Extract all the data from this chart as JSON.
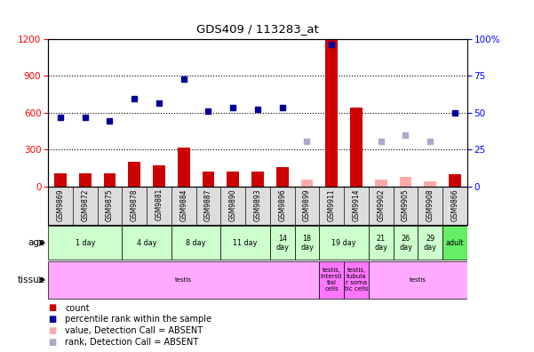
{
  "title": "GDS409 / 113283_at",
  "samples": [
    "GSM9869",
    "GSM9872",
    "GSM9875",
    "GSM9878",
    "GSM9881",
    "GSM9884",
    "GSM9887",
    "GSM9890",
    "GSM9893",
    "GSM9896",
    "GSM9899",
    "GSM9911",
    "GSM9914",
    "GSM9902",
    "GSM9905",
    "GSM9908",
    "GSM9866"
  ],
  "count_values": [
    110,
    110,
    110,
    200,
    175,
    320,
    120,
    120,
    120,
    155,
    null,
    1200,
    640,
    null,
    null,
    null,
    100
  ],
  "count_absent": [
    null,
    null,
    null,
    null,
    null,
    null,
    null,
    null,
    null,
    null,
    60,
    null,
    null,
    60,
    75,
    40,
    null
  ],
  "rank_values": [
    560,
    565,
    535,
    710,
    680,
    870,
    615,
    640,
    630,
    640,
    null,
    1150,
    null,
    null,
    null,
    null,
    600
  ],
  "rank_absent": [
    null,
    null,
    null,
    null,
    null,
    null,
    null,
    null,
    null,
    null,
    370,
    null,
    null,
    370,
    420,
    370,
    null
  ],
  "count_color": "#cc0000",
  "count_absent_color": "#ffaaaa",
  "rank_color": "#000099",
  "rank_absent_color": "#aaaacc",
  "age_groups": [
    {
      "label": "1 day",
      "cols": [
        0,
        1,
        2
      ],
      "color": "#ccffcc"
    },
    {
      "label": "4 day",
      "cols": [
        3,
        4
      ],
      "color": "#ccffcc"
    },
    {
      "label": "8 day",
      "cols": [
        5,
        6
      ],
      "color": "#ccffcc"
    },
    {
      "label": "11 day",
      "cols": [
        7,
        8
      ],
      "color": "#ccffcc"
    },
    {
      "label": "14\nday",
      "cols": [
        9
      ],
      "color": "#ccffcc"
    },
    {
      "label": "18\nday",
      "cols": [
        10
      ],
      "color": "#ccffcc"
    },
    {
      "label": "19 day",
      "cols": [
        11,
        12
      ],
      "color": "#ccffcc"
    },
    {
      "label": "21\nday",
      "cols": [
        13
      ],
      "color": "#ccffcc"
    },
    {
      "label": "26\nday",
      "cols": [
        14
      ],
      "color": "#ccffcc"
    },
    {
      "label": "29\nday",
      "cols": [
        15
      ],
      "color": "#ccffcc"
    },
    {
      "label": "adult",
      "cols": [
        16
      ],
      "color": "#66ee66"
    }
  ],
  "tissue_groups": [
    {
      "label": "testis",
      "cols": [
        0,
        1,
        2,
        3,
        4,
        5,
        6,
        7,
        8,
        9,
        10
      ],
      "color": "#ffaaff"
    },
    {
      "label": "testis,\nintersti\ntial\ncells",
      "cols": [
        11
      ],
      "color": "#ff77ff"
    },
    {
      "label": "testis,\ntubula\nr soma\ntic cells",
      "cols": [
        12
      ],
      "color": "#ff77ff"
    },
    {
      "label": "testis",
      "cols": [
        13,
        14,
        15,
        16
      ],
      "color": "#ffaaff"
    }
  ],
  "ylim_left": [
    0,
    1200
  ],
  "ylim_right": [
    0,
    100
  ],
  "yticks_left": [
    0,
    300,
    600,
    900,
    1200
  ],
  "yticks_right": [
    0,
    25,
    50,
    75,
    100
  ],
  "legend_items": [
    {
      "color": "#cc0000",
      "label": "count"
    },
    {
      "color": "#000099",
      "label": "percentile rank within the sample"
    },
    {
      "color": "#ffaaaa",
      "label": "value, Detection Call = ABSENT"
    },
    {
      "color": "#aaaacc",
      "label": "rank, Detection Call = ABSENT"
    }
  ]
}
